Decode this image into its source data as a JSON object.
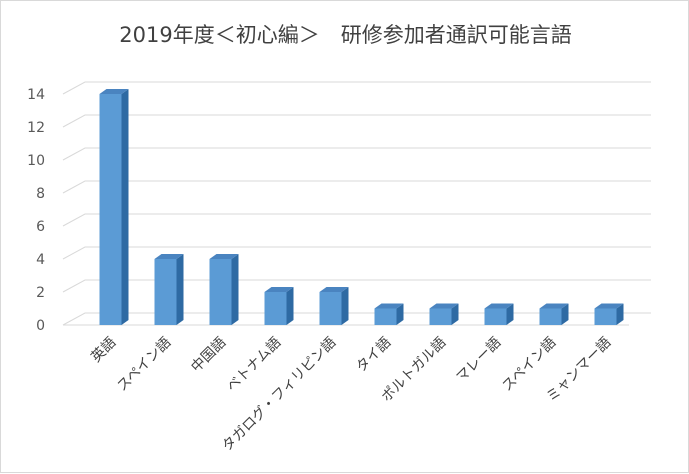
{
  "chart_data": {
    "type": "bar",
    "title": "2019年度＜初心編＞　研修参加者通訳可能言語",
    "xlabel": "",
    "ylabel": "",
    "categories": [
      "英語",
      "スペイン語",
      "中国語",
      "ベトナム語",
      "タガログ・フィリピン語",
      "タイ語",
      "ポルトガル語",
      "マレー語",
      "スペイン語",
      "ミャンマー語"
    ],
    "values": [
      14,
      4,
      4,
      2,
      2,
      1,
      1,
      1,
      1,
      1
    ],
    "ylim": [
      0,
      14
    ],
    "yticks": [
      "0",
      "2",
      "4",
      "6",
      "8",
      "10",
      "12",
      "14"
    ],
    "grid": true,
    "colors": {
      "bar_front": "#5b9bd5",
      "bar_side": "#2e6aa3",
      "bar_top": "#4a84c0",
      "grid": "#d9d9d9",
      "floor": "#d9d9d9"
    }
  }
}
